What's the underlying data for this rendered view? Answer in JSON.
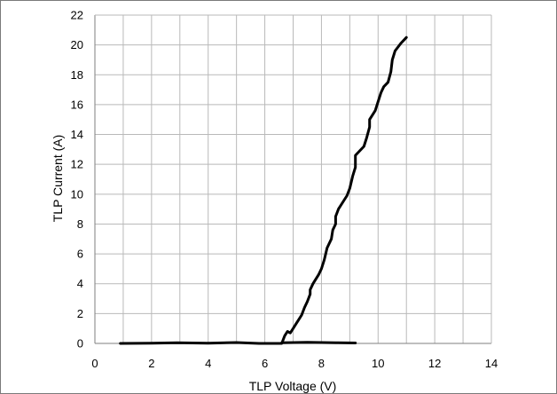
{
  "chart_data": {
    "type": "line",
    "title": "",
    "xlabel": "TLP Voltage (V)",
    "ylabel": "TLP Current (A)",
    "xlim": [
      0,
      14
    ],
    "ylim": [
      0,
      22
    ],
    "xticks": [
      "0",
      "2",
      "4",
      "6",
      "8",
      "10",
      "12",
      "14"
    ],
    "yticks": [
      "0",
      "2",
      "4",
      "6",
      "8",
      "10",
      "12",
      "14",
      "16",
      "18",
      "20",
      "22"
    ],
    "grid": true,
    "legend": "none",
    "series": [
      {
        "color": "#000000",
        "points": [
          [
            0.9,
            0.0
          ],
          [
            2.0,
            0.02
          ],
          [
            2.9,
            0.05
          ],
          [
            4.0,
            0.02
          ],
          [
            5.0,
            0.06
          ],
          [
            5.8,
            0.0
          ],
          [
            6.6,
            0.0
          ],
          [
            6.7,
            0.5
          ],
          [
            6.8,
            0.8
          ],
          [
            6.9,
            0.7
          ],
          [
            7.0,
            1.0
          ],
          [
            7.1,
            1.3
          ],
          [
            7.2,
            1.6
          ],
          [
            7.3,
            1.9
          ],
          [
            7.4,
            2.4
          ],
          [
            7.5,
            2.8
          ],
          [
            7.6,
            3.3
          ],
          [
            7.6,
            3.6
          ],
          [
            7.7,
            4.0
          ],
          [
            7.8,
            4.3
          ],
          [
            7.9,
            4.6
          ],
          [
            8.0,
            5.0
          ],
          [
            8.1,
            5.6
          ],
          [
            8.15,
            6.0
          ],
          [
            8.2,
            6.4
          ],
          [
            8.35,
            7.0
          ],
          [
            8.4,
            7.6
          ],
          [
            8.5,
            8.0
          ],
          [
            8.5,
            8.5
          ],
          [
            8.6,
            9.0
          ],
          [
            8.8,
            9.6
          ],
          [
            8.9,
            9.9
          ],
          [
            9.0,
            10.4
          ],
          [
            9.1,
            11.2
          ],
          [
            9.2,
            11.8
          ],
          [
            9.2,
            12.6
          ],
          [
            9.5,
            13.2
          ],
          [
            9.6,
            13.8
          ],
          [
            9.7,
            14.5
          ],
          [
            9.7,
            15.0
          ],
          [
            9.9,
            15.6
          ],
          [
            10.0,
            16.2
          ],
          [
            10.1,
            16.8
          ],
          [
            10.2,
            17.2
          ],
          [
            10.35,
            17.5
          ],
          [
            10.45,
            18.2
          ],
          [
            10.5,
            19.0
          ],
          [
            10.6,
            19.6
          ],
          [
            10.8,
            20.1
          ],
          [
            11.0,
            20.5
          ]
        ]
      },
      {
        "color": "#000000",
        "points": [
          [
            6.6,
            0.05
          ],
          [
            7.5,
            0.07
          ],
          [
            8.5,
            0.05
          ],
          [
            9.2,
            0.03
          ]
        ]
      }
    ]
  }
}
